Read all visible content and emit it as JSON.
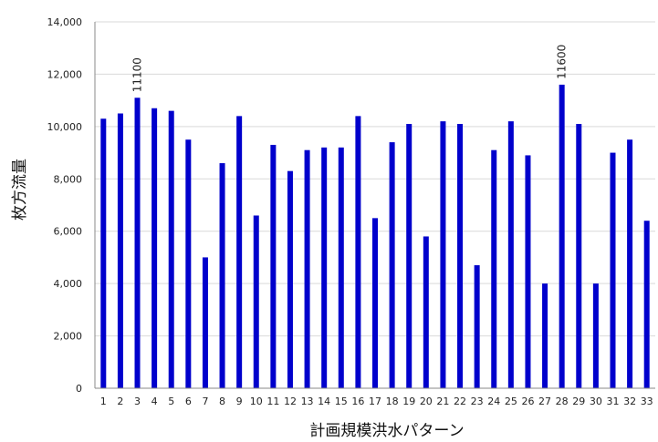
{
  "chart_data": {
    "type": "bar",
    "categories": [
      "1",
      "2",
      "3",
      "4",
      "5",
      "6",
      "7",
      "8",
      "9",
      "10",
      "11",
      "12",
      "13",
      "14",
      "15",
      "16",
      "17",
      "18",
      "19",
      "20",
      "21",
      "22",
      "23",
      "24",
      "25",
      "26",
      "27",
      "28",
      "29",
      "30",
      "31",
      "32",
      "33"
    ],
    "values": [
      10300,
      10500,
      11100,
      10700,
      10600,
      9500,
      5000,
      8600,
      10400,
      6600,
      9300,
      8300,
      9100,
      9200,
      9200,
      10400,
      6500,
      9400,
      10100,
      5800,
      10200,
      10100,
      4700,
      9100,
      10200,
      8900,
      4000,
      11600,
      10100,
      4000,
      9000,
      9500,
      6400
    ],
    "xlabel": "計画規模洪水パターン",
    "ylabel": "枚方流量",
    "ylim": [
      0,
      14000
    ],
    "yticks": [
      0,
      2000,
      4000,
      6000,
      8000,
      10000,
      12000,
      14000
    ],
    "ytick_labels": [
      "0",
      "2,000",
      "4,000",
      "6,000",
      "8,000",
      "10,000",
      "12,000",
      "14,000"
    ],
    "annotations": [
      {
        "category": "3",
        "text": "11100"
      },
      {
        "category": "28",
        "text": "11600"
      }
    ],
    "bar_color": "#0000cc",
    "grid": "horizontal",
    "legend": "none"
  }
}
